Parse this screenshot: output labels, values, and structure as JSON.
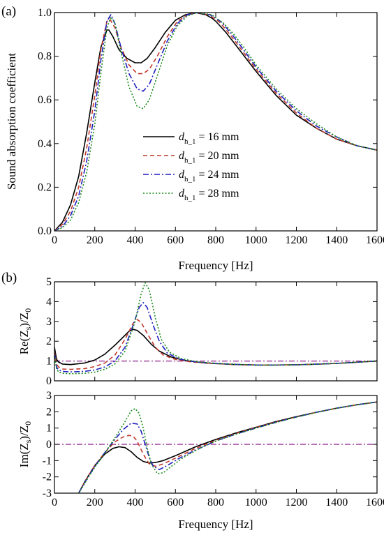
{
  "panel_labels": [
    "(a)",
    "(b)"
  ],
  "colors": {
    "d16": "#000000",
    "d20": "#c0392b",
    "d24": "#1f1fbf",
    "d28": "#1a8a1a",
    "reference": "#8a1c8a"
  },
  "chart_data": [
    {
      "type": "line",
      "panel": "(a)",
      "xlabel": "Frequency [Hz]",
      "ylabel": "Sound absorption coefficient",
      "xlim": [
        0,
        1600
      ],
      "ylim": [
        0,
        1.0
      ],
      "xticks": [
        "0",
        "200",
        "400",
        "600",
        "800",
        "1000",
        "1200",
        "1400",
        "1600"
      ],
      "yticks": [
        "0.0",
        "0.2",
        "0.4",
        "0.6",
        "0.8",
        "1.0"
      ],
      "legend_placement": "center",
      "series": [
        {
          "name_prefix": "d",
          "name_sub": "h_1",
          "name_suffix": "= 16 mm",
          "color": "#000000",
          "dash": "solid",
          "x": [
            0,
            40,
            80,
            120,
            160,
            200,
            230,
            260,
            270,
            290,
            320,
            360,
            400,
            430,
            460,
            500,
            550,
            600,
            650,
            700,
            750,
            780,
            800,
            850,
            900,
            1000,
            1100,
            1200,
            1300,
            1400,
            1500,
            1600
          ],
          "y": [
            0,
            0.04,
            0.12,
            0.25,
            0.45,
            0.68,
            0.84,
            0.92,
            0.92,
            0.89,
            0.83,
            0.79,
            0.77,
            0.77,
            0.79,
            0.84,
            0.91,
            0.965,
            0.99,
            1.0,
            0.99,
            0.975,
            0.96,
            0.91,
            0.85,
            0.73,
            0.62,
            0.53,
            0.47,
            0.42,
            0.39,
            0.37
          ]
        },
        {
          "name_prefix": "d",
          "name_sub": "h_1",
          "name_suffix": "= 20 mm",
          "color": "#c0392b",
          "dash": "dashed",
          "x": [
            0,
            40,
            80,
            120,
            160,
            200,
            230,
            260,
            275,
            300,
            330,
            370,
            410,
            440,
            470,
            510,
            560,
            610,
            660,
            710,
            760,
            790,
            820,
            870,
            920,
            1000,
            1100,
            1200,
            1300,
            1400,
            1500,
            1600
          ],
          "y": [
            0,
            0.03,
            0.09,
            0.2,
            0.38,
            0.62,
            0.83,
            0.96,
            0.97,
            0.93,
            0.84,
            0.76,
            0.72,
            0.72,
            0.74,
            0.8,
            0.89,
            0.96,
            0.99,
            1.0,
            0.99,
            0.975,
            0.955,
            0.9,
            0.84,
            0.74,
            0.63,
            0.54,
            0.47,
            0.42,
            0.39,
            0.37
          ]
        },
        {
          "name_prefix": "d",
          "name_sub": "h_1",
          "name_suffix": "= 24 mm",
          "color": "#1f1fbf",
          "dash": "dashdot",
          "x": [
            0,
            40,
            80,
            120,
            160,
            200,
            230,
            260,
            280,
            300,
            330,
            370,
            410,
            440,
            470,
            510,
            560,
            610,
            660,
            710,
            770,
            800,
            830,
            880,
            930,
            1000,
            1100,
            1200,
            1300,
            1400,
            1500,
            1600
          ],
          "y": [
            0,
            0.02,
            0.07,
            0.16,
            0.32,
            0.55,
            0.78,
            0.96,
            0.99,
            0.95,
            0.84,
            0.72,
            0.65,
            0.64,
            0.67,
            0.76,
            0.87,
            0.95,
            0.99,
            1.0,
            0.99,
            0.975,
            0.955,
            0.9,
            0.84,
            0.75,
            0.64,
            0.55,
            0.48,
            0.43,
            0.39,
            0.37
          ]
        },
        {
          "name_prefix": "d",
          "name_sub": "h_1",
          "name_suffix": "= 28 mm",
          "color": "#1a8a1a",
          "dash": "dotted",
          "x": [
            0,
            40,
            80,
            120,
            160,
            200,
            230,
            260,
            280,
            300,
            330,
            370,
            410,
            440,
            470,
            510,
            560,
            610,
            660,
            710,
            780,
            810,
            840,
            890,
            940,
            1000,
            1100,
            1200,
            1300,
            1400,
            1500,
            1600
          ],
          "y": [
            0,
            0.015,
            0.05,
            0.13,
            0.27,
            0.49,
            0.72,
            0.93,
            0.98,
            0.95,
            0.82,
            0.66,
            0.57,
            0.56,
            0.6,
            0.71,
            0.85,
            0.94,
            0.985,
            1.0,
            0.99,
            0.97,
            0.95,
            0.9,
            0.84,
            0.76,
            0.65,
            0.56,
            0.49,
            0.43,
            0.39,
            0.37
          ]
        }
      ]
    },
    {
      "type": "line",
      "panel": "(b)",
      "xlabel": "",
      "ylabel_main": "Re(Z",
      "ylabel_sub1": "s",
      "ylabel_mid": ")/Z",
      "ylabel_sub2": "0",
      "xlim": [
        0,
        1600
      ],
      "ylim": [
        0,
        5
      ],
      "xticks": [],
      "yticks": [
        "0",
        "1",
        "2",
        "3",
        "4",
        "5"
      ],
      "reference_line": {
        "y": 1,
        "color": "#8a1c8a",
        "dash": "dashdot"
      },
      "series": [
        {
          "name": "16 mm",
          "color": "#000000",
          "dash": "solid",
          "x": [
            0,
            10,
            20,
            40,
            80,
            150,
            200,
            250,
            300,
            340,
            370,
            390,
            410,
            440,
            480,
            520,
            580,
            650,
            750,
            900,
            1000,
            1100,
            1200,
            1300,
            1400,
            1500,
            1600
          ],
          "y": [
            1.7,
            1.1,
            0.95,
            0.85,
            0.82,
            0.9,
            1.05,
            1.35,
            1.8,
            2.2,
            2.5,
            2.6,
            2.55,
            2.3,
            1.85,
            1.5,
            1.2,
            1.02,
            0.9,
            0.82,
            0.8,
            0.8,
            0.81,
            0.84,
            0.88,
            0.94,
            1.0
          ]
        },
        {
          "name": "20 mm",
          "color": "#c0392b",
          "dash": "dashed",
          "x": [
            0,
            10,
            20,
            40,
            80,
            150,
            200,
            250,
            300,
            350,
            390,
            410,
            430,
            460,
            500,
            540,
            600,
            680,
            780,
            900,
            1000,
            1100,
            1200,
            1300,
            1400,
            1500,
            1600
          ],
          "y": [
            1.5,
            0.85,
            0.7,
            0.6,
            0.58,
            0.62,
            0.72,
            0.9,
            1.3,
            2.1,
            2.9,
            3.1,
            2.95,
            2.4,
            1.7,
            1.3,
            1.08,
            0.95,
            0.88,
            0.82,
            0.8,
            0.8,
            0.81,
            0.84,
            0.88,
            0.94,
            1.0
          ]
        },
        {
          "name": "24 mm",
          "color": "#1f1fbf",
          "dash": "dashdot",
          "x": [
            0,
            10,
            20,
            40,
            80,
            150,
            200,
            250,
            300,
            350,
            390,
            420,
            440,
            460,
            490,
            520,
            560,
            620,
            700,
            800,
            900,
            1000,
            1100,
            1200,
            1300,
            1400,
            1500,
            1600
          ],
          "y": [
            1.4,
            0.7,
            0.55,
            0.48,
            0.45,
            0.48,
            0.55,
            0.7,
            1.0,
            1.7,
            2.8,
            3.7,
            3.95,
            3.7,
            2.8,
            2.0,
            1.4,
            1.1,
            0.95,
            0.88,
            0.83,
            0.8,
            0.8,
            0.81,
            0.84,
            0.88,
            0.94,
            1.0
          ]
        },
        {
          "name": "28 mm",
          "color": "#1a8a1a",
          "dash": "dotted",
          "x": [
            0,
            10,
            20,
            40,
            80,
            150,
            200,
            250,
            300,
            350,
            400,
            430,
            450,
            470,
            500,
            530,
            570,
            630,
            710,
            800,
            900,
            1000,
            1100,
            1200,
            1300,
            1400,
            1500,
            1600
          ],
          "y": [
            1.3,
            0.6,
            0.45,
            0.38,
            0.36,
            0.38,
            0.44,
            0.58,
            0.85,
            1.5,
            3.0,
            4.4,
            4.95,
            4.6,
            3.2,
            2.1,
            1.45,
            1.12,
            0.96,
            0.88,
            0.83,
            0.8,
            0.8,
            0.81,
            0.84,
            0.88,
            0.94,
            1.0
          ]
        }
      ]
    },
    {
      "type": "line",
      "panel": "(b)",
      "xlabel": "Frequency [Hz]",
      "ylabel_main": "Im(Z",
      "ylabel_sub1": "s",
      "ylabel_mid": ")/Z",
      "ylabel_sub2": "0",
      "xlim": [
        0,
        1600
      ],
      "ylim": [
        -3,
        3
      ],
      "xticks": [
        "0",
        "200",
        "400",
        "600",
        "800",
        "1000",
        "1200",
        "1400",
        "1600"
      ],
      "yticks": [
        "-3",
        "-2",
        "-1",
        "0",
        "1",
        "2",
        "3"
      ],
      "reference_line": {
        "y": 0,
        "color": "#8a1c8a",
        "dash": "dashdot"
      },
      "series": [
        {
          "name": "16 mm",
          "color": "#000000",
          "dash": "solid",
          "x": [
            120,
            150,
            200,
            250,
            290,
            320,
            350,
            380,
            410,
            440,
            470,
            500,
            540,
            600,
            700,
            800,
            900,
            1000,
            1100,
            1200,
            1300,
            1400,
            1500,
            1600
          ],
          "y": [
            -3.0,
            -2.3,
            -1.3,
            -0.6,
            -0.25,
            -0.15,
            -0.2,
            -0.45,
            -0.8,
            -1.05,
            -1.15,
            -1.12,
            -1.0,
            -0.7,
            -0.15,
            0.3,
            0.7,
            1.05,
            1.4,
            1.7,
            1.97,
            2.22,
            2.43,
            2.6
          ]
        },
        {
          "name": "20 mm",
          "color": "#c0392b",
          "dash": "dashed",
          "x": [
            120,
            150,
            200,
            250,
            300,
            340,
            370,
            390,
            410,
            440,
            470,
            500,
            540,
            600,
            700,
            800,
            900,
            1000,
            1100,
            1200,
            1300,
            1400,
            1500,
            1600
          ],
          "y": [
            -3.0,
            -2.3,
            -1.3,
            -0.5,
            0.15,
            0.45,
            0.55,
            0.5,
            0.2,
            -0.6,
            -1.2,
            -1.35,
            -1.2,
            -0.85,
            -0.25,
            0.25,
            0.67,
            1.03,
            1.38,
            1.69,
            1.97,
            2.22,
            2.43,
            2.6
          ]
        },
        {
          "name": "24 mm",
          "color": "#1f1fbf",
          "dash": "dashdot",
          "x": [
            120,
            150,
            200,
            250,
            300,
            340,
            380,
            410,
            430,
            450,
            470,
            490,
            520,
            560,
            620,
            700,
            800,
            900,
            1000,
            1100,
            1200,
            1300,
            1400,
            1500,
            1600
          ],
          "y": [
            -3.0,
            -2.35,
            -1.35,
            -0.5,
            0.3,
            0.9,
            1.3,
            1.25,
            0.8,
            0.0,
            -0.8,
            -1.35,
            -1.55,
            -1.3,
            -0.85,
            -0.35,
            0.2,
            0.63,
            1.0,
            1.36,
            1.68,
            1.97,
            2.22,
            2.43,
            2.6
          ]
        },
        {
          "name": "28 mm",
          "color": "#1a8a1a",
          "dash": "dotted",
          "x": [
            120,
            150,
            200,
            250,
            300,
            350,
            380,
            400,
            420,
            440,
            460,
            480,
            510,
            540,
            580,
            640,
            720,
            800,
            900,
            1000,
            1100,
            1200,
            1300,
            1400,
            1500,
            1600
          ],
          "y": [
            -3.0,
            -2.4,
            -1.4,
            -0.55,
            0.4,
            1.4,
            2.05,
            2.2,
            1.9,
            1.0,
            -0.2,
            -1.2,
            -1.8,
            -1.75,
            -1.35,
            -0.8,
            -0.25,
            0.2,
            0.62,
            1.0,
            1.35,
            1.67,
            1.96,
            2.22,
            2.43,
            2.6
          ]
        }
      ]
    }
  ]
}
